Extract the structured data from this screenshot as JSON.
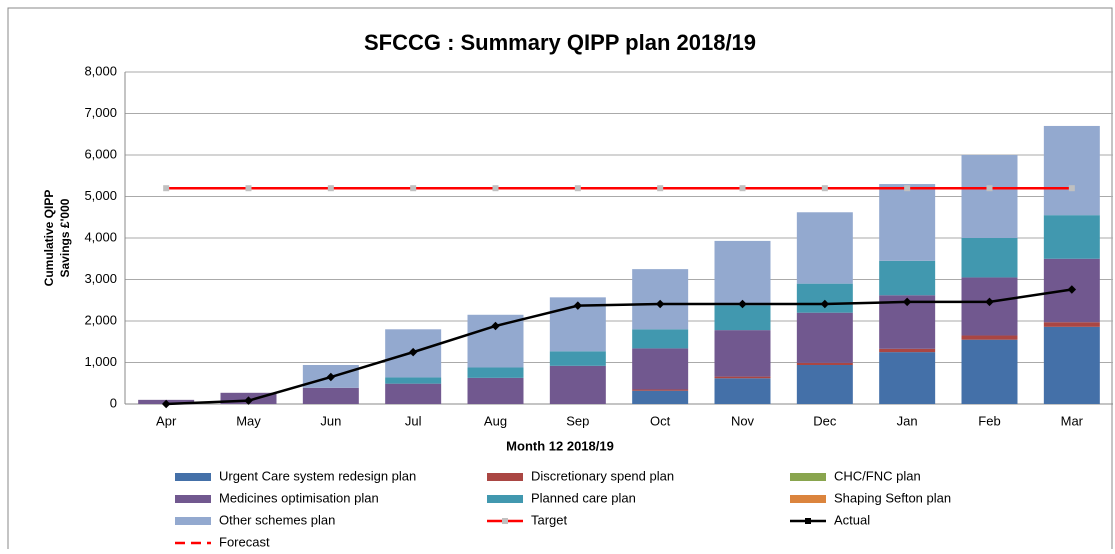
{
  "chart_data": {
    "type": "bar",
    "title": "SFCCG : Summary QIPP plan 2018/19",
    "xlabel": "Month 12 2018/19",
    "ylabel": [
      "Cumulative QIPP",
      "Savings £'000"
    ],
    "categories": [
      "Apr",
      "May",
      "Jun",
      "Jul",
      "Aug",
      "Sep",
      "Oct",
      "Nov",
      "Dec",
      "Jan",
      "Feb",
      "Mar"
    ],
    "ylim": [
      0,
      8000
    ],
    "yticks": [
      0,
      {
        "value": 1000,
        "label": "1,000"
      },
      {
        "value": 2000,
        "label": "2,000"
      },
      {
        "value": 3000,
        "label": "3,000"
      },
      {
        "value": 4000,
        "label": "4,000"
      },
      {
        "value": 5000,
        "label": "5,000"
      },
      {
        "value": 6000,
        "label": "6,000"
      },
      {
        "value": 7000,
        "label": "7,000"
      },
      {
        "value": 8000,
        "label": "8,000"
      }
    ],
    "grid": true,
    "series": [
      {
        "name": "Urgent Care system redesign plan",
        "kind": "bar",
        "color": "#4470a8",
        "values": [
          0,
          0,
          0,
          0,
          0,
          0,
          320,
          620,
          940,
          1250,
          1550,
          1860
        ]
      },
      {
        "name": "Discretionary spend plan",
        "kind": "bar",
        "color": "#aa4643",
        "values": [
          0,
          0,
          0,
          0,
          0,
          0,
          30,
          40,
          50,
          80,
          100,
          110
        ]
      },
      {
        "name": "CHC/FNC plan",
        "kind": "bar",
        "color": "#89a54e",
        "values": [
          0,
          0,
          0,
          0,
          0,
          0,
          0,
          0,
          0,
          0,
          0,
          0
        ]
      },
      {
        "name": "Medicines optimisation plan",
        "kind": "bar",
        "color": "#71588f",
        "values": [
          100,
          270,
          390,
          490,
          630,
          920,
          990,
          1120,
          1210,
          1290,
          1400,
          1530
        ]
      },
      {
        "name": "Planned care plan",
        "kind": "bar",
        "color": "#4198af",
        "values": [
          0,
          0,
          0,
          150,
          250,
          350,
          460,
          600,
          700,
          830,
          950,
          1050
        ]
      },
      {
        "name": "Shaping Sefton plan",
        "kind": "bar",
        "color": "#db843d",
        "values": [
          0,
          0,
          0,
          0,
          0,
          0,
          0,
          0,
          0,
          0,
          0,
          0
        ]
      },
      {
        "name": "Other schemes plan",
        "kind": "bar",
        "color": "#93a9cf",
        "values": [
          0,
          0,
          550,
          1160,
          1270,
          1300,
          1450,
          1550,
          1720,
          1850,
          2000,
          2150
        ]
      },
      {
        "name": "Target",
        "kind": "line",
        "color": "#ff0000",
        "marker": "#c0c0c0",
        "values": [
          5200,
          5200,
          5200,
          5200,
          5200,
          5200,
          5200,
          5200,
          5200,
          5200,
          5200,
          5200
        ]
      },
      {
        "name": "Actual",
        "kind": "line",
        "color": "#000000",
        "marker": "#000000",
        "values": [
          0,
          80,
          650,
          1250,
          1880,
          2370,
          2410,
          2410,
          2410,
          2460,
          2460,
          2760
        ]
      },
      {
        "name": "Forecast",
        "kind": "line",
        "color": "#ff0000",
        "dash": true,
        "values": [
          null,
          null,
          null,
          null,
          null,
          null,
          null,
          null,
          null,
          null,
          null,
          null
        ]
      }
    ]
  }
}
